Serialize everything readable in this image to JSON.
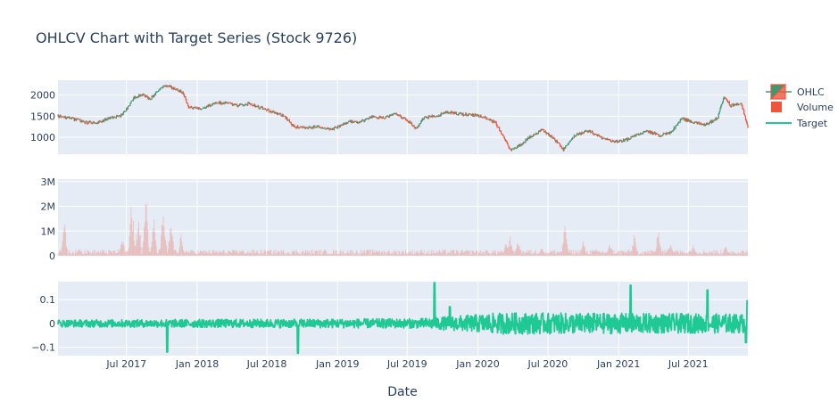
{
  "chart_data": {
    "type": "candlestick",
    "title": "OHLCV Chart with Target Series (Stock 9726)",
    "xlabel": "Date",
    "x_range": [
      "2017-01-04",
      "2021-12-03"
    ],
    "x_ticks": [
      {
        "date": "2017-07-01",
        "label": "Jul 2017"
      },
      {
        "date": "2018-01-01",
        "label": "Jan 2018"
      },
      {
        "date": "2018-07-01",
        "label": "Jul 2018"
      },
      {
        "date": "2019-01-01",
        "label": "Jan 2019"
      },
      {
        "date": "2019-07-01",
        "label": "Jul 2019"
      },
      {
        "date": "2020-01-01",
        "label": "Jan 2020"
      },
      {
        "date": "2020-07-01",
        "label": "Jul 2020"
      },
      {
        "date": "2021-01-01",
        "label": "Jan 2021"
      },
      {
        "date": "2021-07-01",
        "label": "Jul 2021"
      }
    ],
    "legend": {
      "placement": "right",
      "entries": [
        {
          "name": "OHLC",
          "symbol": "candle"
        },
        {
          "name": "Volume",
          "symbol": "square"
        },
        {
          "name": "Target",
          "symbol": "line"
        }
      ]
    },
    "colors": {
      "increasing": "#3d9970",
      "decreasing": "#ef553b",
      "volume": "#ef553b",
      "target": "#1fc993",
      "plot_bg": "#e5ecf6",
      "grid": "#ffffff"
    },
    "panels": [
      {
        "name": "price",
        "ylim": [
          600,
          2350
        ],
        "y_ticks": [
          {
            "value": 1000,
            "label": "1000"
          },
          {
            "value": 1500,
            "label": "1500"
          },
          {
            "value": 2000,
            "label": "2000"
          }
        ],
        "close_path": [
          [
            "2017-01-04",
            1500
          ],
          [
            "2017-02-15",
            1430
          ],
          [
            "2017-03-15",
            1360
          ],
          [
            "2017-04-15",
            1330
          ],
          [
            "2017-05-15",
            1450
          ],
          [
            "2017-06-15",
            1500
          ],
          [
            "2017-07-05",
            1700
          ],
          [
            "2017-07-20",
            1950
          ],
          [
            "2017-08-15",
            2000
          ],
          [
            "2017-09-01",
            1900
          ],
          [
            "2017-09-20",
            2100
          ],
          [
            "2017-10-10",
            2250
          ],
          [
            "2017-11-01",
            2150
          ],
          [
            "2017-11-25",
            2050
          ],
          [
            "2017-12-10",
            1700
          ],
          [
            "2018-01-15",
            1680
          ],
          [
            "2018-02-15",
            1800
          ],
          [
            "2018-03-15",
            1820
          ],
          [
            "2018-04-15",
            1750
          ],
          [
            "2018-05-15",
            1800
          ],
          [
            "2018-06-15",
            1700
          ],
          [
            "2018-07-15",
            1600
          ],
          [
            "2018-08-15",
            1500
          ],
          [
            "2018-09-10",
            1250
          ],
          [
            "2018-10-15",
            1220
          ],
          [
            "2018-11-15",
            1250
          ],
          [
            "2018-12-15",
            1180
          ],
          [
            "2019-01-15",
            1300
          ],
          [
            "2019-02-01",
            1380
          ],
          [
            "2019-03-01",
            1350
          ],
          [
            "2019-04-01",
            1500
          ],
          [
            "2019-05-01",
            1450
          ],
          [
            "2019-06-01",
            1550
          ],
          [
            "2019-07-01",
            1400
          ],
          [
            "2019-07-25",
            1200
          ],
          [
            "2019-08-15",
            1480
          ],
          [
            "2019-09-15",
            1500
          ],
          [
            "2019-10-15",
            1600
          ],
          [
            "2019-11-15",
            1550
          ],
          [
            "2019-12-15",
            1530
          ],
          [
            "2020-01-15",
            1500
          ],
          [
            "2020-02-15",
            1350
          ],
          [
            "2020-03-10",
            950
          ],
          [
            "2020-03-25",
            700
          ],
          [
            "2020-04-20",
            820
          ],
          [
            "2020-05-15",
            1000
          ],
          [
            "2020-06-15",
            1180
          ],
          [
            "2020-07-15",
            980
          ],
          [
            "2020-08-10",
            720
          ],
          [
            "2020-09-10",
            1050
          ],
          [
            "2020-10-15",
            1150
          ],
          [
            "2020-11-15",
            1000
          ],
          [
            "2020-12-15",
            900
          ],
          [
            "2021-01-15",
            920
          ],
          [
            "2021-02-15",
            1050
          ],
          [
            "2021-03-15",
            1150
          ],
          [
            "2021-04-15",
            1050
          ],
          [
            "2021-05-15",
            1100
          ],
          [
            "2021-06-15",
            1450
          ],
          [
            "2021-07-15",
            1350
          ],
          [
            "2021-08-15",
            1300
          ],
          [
            "2021-09-15",
            1450
          ],
          [
            "2021-10-01",
            1950
          ],
          [
            "2021-10-20",
            1750
          ],
          [
            "2021-11-15",
            1800
          ],
          [
            "2021-12-03",
            1250
          ]
        ]
      },
      {
        "name": "volume",
        "ylim": [
          0,
          3100000
        ],
        "y_ticks": [
          {
            "value": 0,
            "label": "0"
          },
          {
            "value": 1000000,
            "label": "1M"
          },
          {
            "value": 2000000,
            "label": "2M"
          },
          {
            "value": 3000000,
            "label": "3M"
          }
        ],
        "baseline": 150000,
        "spikes": [
          [
            "2017-01-20",
            1600000
          ],
          [
            "2017-03-01",
            500000
          ],
          [
            "2017-06-20",
            800000
          ],
          [
            "2017-07-15",
            2500000
          ],
          [
            "2017-08-01",
            1800000
          ],
          [
            "2017-08-20",
            2900000
          ],
          [
            "2017-09-10",
            1700000
          ],
          [
            "2017-10-05",
            2200000
          ],
          [
            "2017-10-25",
            1500000
          ],
          [
            "2017-11-20",
            900000
          ],
          [
            "2018-04-10",
            300000
          ],
          [
            "2019-04-15",
            300000
          ],
          [
            "2020-03-15",
            600000
          ],
          [
            "2020-03-25",
            800000
          ],
          [
            "2020-04-15",
            700000
          ],
          [
            "2020-06-15",
            500000
          ],
          [
            "2020-08-15",
            1500000
          ],
          [
            "2020-10-01",
            700000
          ],
          [
            "2020-12-10",
            600000
          ],
          [
            "2021-02-10",
            900000
          ],
          [
            "2021-04-15",
            1200000
          ],
          [
            "2021-05-15",
            700000
          ],
          [
            "2021-07-15",
            600000
          ],
          [
            "2021-10-05",
            500000
          ]
        ]
      },
      {
        "name": "target",
        "ylim": [
          -0.135,
          0.175
        ],
        "y_ticks": [
          {
            "value": -0.1,
            "label": "−0.1"
          },
          {
            "value": 0,
            "label": "0"
          },
          {
            "value": 0.1,
            "label": "0.1"
          }
        ],
        "noise_amplitude": [
          [
            "2017-01-04",
            0.015
          ],
          [
            "2019-08-01",
            0.02
          ],
          [
            "2020-03-01",
            0.045
          ],
          [
            "2021-12-03",
            0.04
          ]
        ],
        "spikes": [
          [
            "2017-10-15",
            -0.12
          ],
          [
            "2018-09-20",
            -0.125
          ],
          [
            "2019-09-10",
            0.17
          ],
          [
            "2019-10-20",
            0.07
          ],
          [
            "2021-02-01",
            0.16
          ],
          [
            "2021-08-20",
            0.14
          ],
          [
            "2021-12-02",
            0.095
          ],
          [
            "2021-11-28",
            -0.08
          ]
        ]
      }
    ]
  }
}
